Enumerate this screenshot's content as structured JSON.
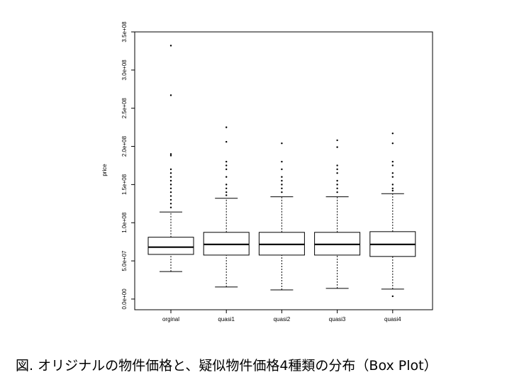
{
  "chart_data": {
    "type": "boxplot",
    "y_label": "price",
    "categories": [
      "orginal",
      "quasi1",
      "quasi2",
      "quasi3",
      "quasi4"
    ],
    "boxes": [
      {
        "min": 36000000,
        "q1": 58500000,
        "median": 68000000,
        "q3": 81000000,
        "max": 114000000,
        "outliers": [
          332000000,
          267000000,
          190000000,
          188000000,
          170000000,
          165000000,
          160000000,
          155000000,
          150000000,
          145000000,
          140000000,
          135000000,
          130000000,
          125000000,
          120000000
        ]
      },
      {
        "min": 15800000,
        "q1": 57600000,
        "median": 71600000,
        "q3": 87400000,
        "max": 132000000,
        "outliers": [
          225000000,
          206000000,
          180000000,
          175000000,
          170000000,
          160000000,
          150000000,
          145000000,
          140000000,
          136000000
        ]
      },
      {
        "min": 12000000,
        "q1": 57600000,
        "median": 71600000,
        "q3": 87400000,
        "max": 134000000,
        "outliers": [
          204000000,
          180000000,
          170000000,
          160000000,
          155000000,
          150000000,
          145000000,
          140000000
        ]
      },
      {
        "min": 14000000,
        "q1": 57600000,
        "median": 71600000,
        "q3": 87400000,
        "max": 134000000,
        "outliers": [
          208000000,
          199000000,
          175000000,
          170000000,
          165000000,
          155000000,
          150000000,
          145000000,
          140000000
        ]
      },
      {
        "min": 13000000,
        "q1": 55800000,
        "median": 71600000,
        "q3": 88300000,
        "max": 138000000,
        "outliers": [
          217000000,
          204000000,
          180000000,
          175000000,
          165000000,
          160000000,
          150000000,
          145000000,
          142000000,
          3700000
        ]
      }
    ],
    "ylim": [
      -14000000,
      350000000
    ],
    "yticks": [
      {
        "value": 0,
        "label": "0.0e+00"
      },
      {
        "value": 50000000,
        "label": "5.0e+07"
      },
      {
        "value": 100000000,
        "label": "1.0e+08"
      },
      {
        "value": 150000000,
        "label": "1.5e+08"
      },
      {
        "value": 200000000,
        "label": "2.0e+08"
      },
      {
        "value": 250000000,
        "label": "2.5e+08"
      },
      {
        "value": 300000000,
        "label": "3.0e+08"
      },
      {
        "value": 350000000,
        "label": "3.5e+08"
      }
    ],
    "color": "#000000",
    "caption": "図. オリジナルの物件価格と、疑似物件価格4種類の分布（Box Plot）"
  }
}
